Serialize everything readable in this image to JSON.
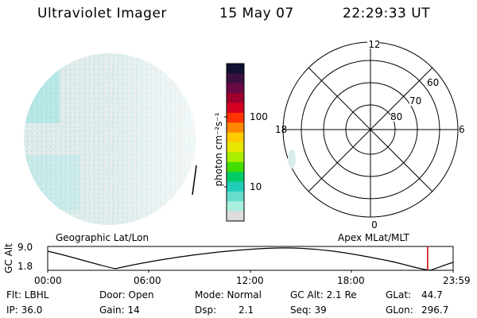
{
  "header": {
    "title": "Ultraviolet Imager",
    "date": "15 May 07",
    "time": "22:29:33 UT"
  },
  "colorbar": {
    "unit_label": "photon cm⁻²s⁻¹",
    "ticks": [
      "100",
      "10"
    ],
    "colors": [
      "#111133",
      "#3a1040",
      "#6a0a45",
      "#a00030",
      "#d40020",
      "#ff3300",
      "#ff8800",
      "#ffcc00",
      "#e6e600",
      "#aaee00",
      "#44dd00",
      "#00cc66",
      "#22ccbb",
      "#66ddcc",
      "#aaeedd",
      "#dddddd"
    ]
  },
  "polar_plot": {
    "mlt_labels": {
      "top": "12",
      "left": "18",
      "right": "6",
      "bottom": "0"
    },
    "mlat_labels": [
      "60",
      "70",
      "80"
    ]
  },
  "timeline": {
    "left_title": "Geographic Lat/Lon",
    "right_title": "Apex MLat/MLT",
    "y_label": "GC Alt",
    "y_ticks": [
      "9.0",
      "1.8"
    ],
    "x_ticks": [
      "00:00",
      "06:00",
      "12:00",
      "18:00",
      "23:59"
    ],
    "current_time_hours": 22.49,
    "marker_color": "#cc0000"
  },
  "info": {
    "row1": {
      "flt": "Flt: LBHL",
      "door": "Door: Open",
      "mode": "Mode: Normal",
      "gc_alt": "GC Alt: 2.1 Re",
      "glat_label": "GLat:",
      "glat_value": "44.7"
    },
    "row2": {
      "ip": "IP: 36.0",
      "gain": "Gain: 14",
      "dsp_label": "Dsp:",
      "dsp_value": "2.1",
      "seq": "Seq: 39",
      "glon_label": "GLon:",
      "glon_value": "296.7"
    }
  }
}
